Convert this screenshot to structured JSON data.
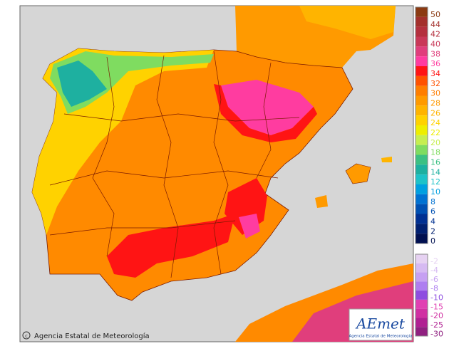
{
  "legend": {
    "positive": [
      {
        "label": "50",
        "color": "#8b3a12"
      },
      {
        "label": "44",
        "color": "#a3302c"
      },
      {
        "label": "42",
        "color": "#b4303e"
      },
      {
        "label": "40",
        "color": "#c93858"
      },
      {
        "label": "38",
        "color": "#e03e7c"
      },
      {
        "label": "36",
        "color": "#ff3ca0"
      },
      {
        "label": "34",
        "color": "#ff1414"
      },
      {
        "label": "32",
        "color": "#ff5200"
      },
      {
        "label": "30",
        "color": "#ff7e00"
      },
      {
        "label": "28",
        "color": "#ff9a00"
      },
      {
        "label": "26",
        "color": "#ffb400"
      },
      {
        "label": "24",
        "color": "#ffd200"
      },
      {
        "label": "22",
        "color": "#eeee00"
      },
      {
        "label": "20",
        "color": "#c6ee50"
      },
      {
        "label": "18",
        "color": "#7fdc60"
      },
      {
        "label": "16",
        "color": "#3cc083"
      },
      {
        "label": "14",
        "color": "#1eb0a0"
      },
      {
        "label": "12",
        "color": "#1ec2c8"
      },
      {
        "label": "10",
        "color": "#00a0e0"
      },
      {
        "label": "8",
        "color": "#0072d2"
      },
      {
        "label": "6",
        "color": "#0050b2"
      },
      {
        "label": "4",
        "color": "#003092"
      },
      {
        "label": "2",
        "color": "#002070"
      },
      {
        "label": "0",
        "color": "#001050"
      }
    ],
    "negative": [
      {
        "label": "-2",
        "color": "#e6d2f2"
      },
      {
        "label": "-4",
        "color": "#d6baf2"
      },
      {
        "label": "-6",
        "color": "#c6a0f2"
      },
      {
        "label": "-8",
        "color": "#ae7ef0"
      },
      {
        "label": "-10",
        "color": "#8e4ee0"
      },
      {
        "label": "-15",
        "color": "#e040b2"
      },
      {
        "label": "-20",
        "color": "#d030a2"
      },
      {
        "label": "-25",
        "color": "#b02092"
      },
      {
        "label": "-30",
        "color": "#902080"
      }
    ]
  },
  "credit": "Agencia Estatal de Meteorología",
  "logo": {
    "name": "AEmet",
    "subtitle": "Agencia Estatal de Meteorologia"
  }
}
